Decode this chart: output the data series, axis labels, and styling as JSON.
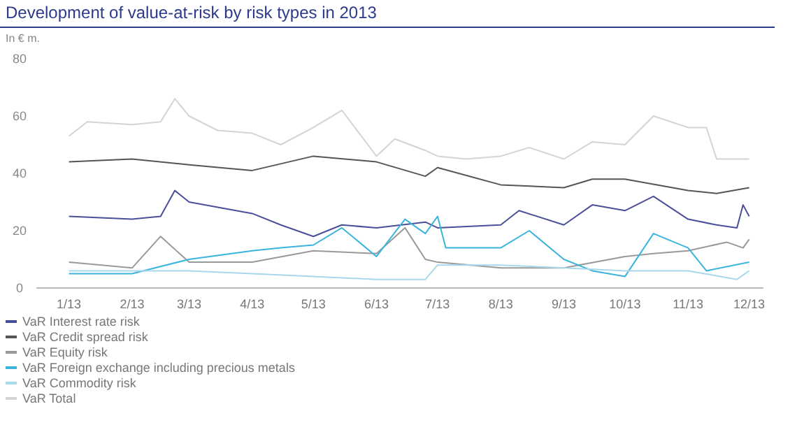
{
  "chart_data": {
    "type": "line",
    "title": "Development of value-at-risk by risk types in 2013",
    "subtitle": "In € m.",
    "xlim": [
      "2012-12-16",
      "2013-12-08"
    ],
    "xticks": [
      {
        "value": "2013-01-01",
        "label": "1/13"
      },
      {
        "value": "2013-02-01",
        "label": "2/13"
      },
      {
        "value": "2013-03-01",
        "label": "3/13"
      },
      {
        "value": "2013-04-01",
        "label": "4/13"
      },
      {
        "value": "2013-05-01",
        "label": "5/13"
      },
      {
        "value": "2013-06-01",
        "label": "6/13"
      },
      {
        "value": "2013-07-01",
        "label": "7/13"
      },
      {
        "value": "2013-08-01",
        "label": "8/13"
      },
      {
        "value": "2013-09-01",
        "label": "9/13"
      },
      {
        "value": "2013-10-01",
        "label": "10/13"
      },
      {
        "value": "2013-11-01",
        "label": "11/13"
      },
      {
        "value": "2013-12-01",
        "label": "12/13"
      }
    ],
    "ylim": [
      0,
      80
    ],
    "yticks": [
      0,
      20,
      40,
      60,
      80
    ],
    "grid": false,
    "legend": "bottom",
    "marker": "none",
    "line_style": "solid",
    "series": [
      {
        "name": "VaR Interest rate risk",
        "color": "#4a4f9a",
        "x": [
          "2013-01-01",
          "2013-02-01",
          "2013-02-15",
          "2013-02-22",
          "2013-03-01",
          "2013-04-01",
          "2013-04-15",
          "2013-05-01",
          "2013-05-15",
          "2013-06-01",
          "2013-06-25",
          "2013-07-01",
          "2013-08-01",
          "2013-08-10",
          "2013-09-01",
          "2013-09-15",
          "2013-10-01",
          "2013-10-15",
          "2013-11-01",
          "2013-11-15",
          "2013-11-25",
          "2013-11-28",
          "2013-12-01"
        ],
        "values": [
          25,
          24,
          25,
          34,
          30,
          26,
          22,
          18,
          22,
          21,
          23,
          21,
          22,
          27,
          22,
          29,
          27,
          32,
          24,
          22,
          21,
          29,
          25
        ]
      },
      {
        "name": "VaR Credit spread risk",
        "color": "#555555",
        "x": [
          "2013-01-01",
          "2013-02-01",
          "2013-03-01",
          "2013-04-01",
          "2013-05-01",
          "2013-06-01",
          "2013-06-25",
          "2013-07-01",
          "2013-08-01",
          "2013-09-01",
          "2013-09-15",
          "2013-10-01",
          "2013-11-01",
          "2013-11-15",
          "2013-12-01"
        ],
        "values": [
          44,
          45,
          43,
          41,
          46,
          44,
          39,
          42,
          36,
          35,
          38,
          38,
          34,
          33,
          35
        ]
      },
      {
        "name": "VaR Equity risk",
        "color": "#999999",
        "x": [
          "2013-01-01",
          "2013-02-01",
          "2013-02-15",
          "2013-03-01",
          "2013-04-01",
          "2013-05-01",
          "2013-06-01",
          "2013-06-15",
          "2013-06-25",
          "2013-07-01",
          "2013-08-01",
          "2013-09-01",
          "2013-10-01",
          "2013-10-15",
          "2013-11-01",
          "2013-11-20",
          "2013-11-28",
          "2013-12-01"
        ],
        "values": [
          9,
          7,
          18,
          9,
          9,
          13,
          12,
          21,
          10,
          9,
          7,
          7,
          11,
          12,
          13,
          16,
          14,
          17
        ]
      },
      {
        "name": "VaR Foreign exchange including precious metals",
        "color": "#3ab4dc",
        "x": [
          "2013-01-01",
          "2013-02-01",
          "2013-03-01",
          "2013-04-01",
          "2013-04-15",
          "2013-05-01",
          "2013-05-15",
          "2013-06-01",
          "2013-06-15",
          "2013-06-25",
          "2013-07-01",
          "2013-07-05",
          "2013-08-01",
          "2013-08-15",
          "2013-09-01",
          "2013-09-15",
          "2013-10-01",
          "2013-10-15",
          "2013-11-01",
          "2013-11-10",
          "2013-12-01"
        ],
        "values": [
          5,
          5,
          10,
          13,
          14,
          15,
          21,
          11,
          24,
          19,
          25,
          14,
          14,
          20,
          10,
          6,
          4,
          19,
          14,
          6,
          9
        ]
      },
      {
        "name": "VaR Commodity risk",
        "color": "#a8d8ee",
        "x": [
          "2013-01-01",
          "2013-02-01",
          "2013-03-01",
          "2013-04-01",
          "2013-05-01",
          "2013-06-01",
          "2013-06-25",
          "2013-07-01",
          "2013-08-01",
          "2013-09-01",
          "2013-10-01",
          "2013-11-01",
          "2013-11-25",
          "2013-12-01"
        ],
        "values": [
          6,
          6,
          6,
          5,
          4,
          3,
          3,
          8,
          8,
          7,
          6,
          6,
          3,
          6
        ]
      },
      {
        "name": "VaR Total",
        "color": "#d4d4d4",
        "x": [
          "2013-01-01",
          "2013-01-10",
          "2013-02-01",
          "2013-02-15",
          "2013-02-22",
          "2013-03-01",
          "2013-03-15",
          "2013-04-01",
          "2013-04-15",
          "2013-05-01",
          "2013-05-15",
          "2013-06-01",
          "2013-06-10",
          "2013-06-25",
          "2013-07-01",
          "2013-07-15",
          "2013-08-01",
          "2013-08-15",
          "2013-09-01",
          "2013-09-15",
          "2013-10-01",
          "2013-10-15",
          "2013-11-01",
          "2013-11-10",
          "2013-11-15",
          "2013-12-01"
        ],
        "values": [
          53,
          58,
          57,
          58,
          66,
          60,
          55,
          54,
          50,
          56,
          62,
          46,
          52,
          48,
          46,
          45,
          46,
          49,
          45,
          51,
          50,
          60,
          56,
          56,
          45,
          45
        ]
      }
    ]
  }
}
